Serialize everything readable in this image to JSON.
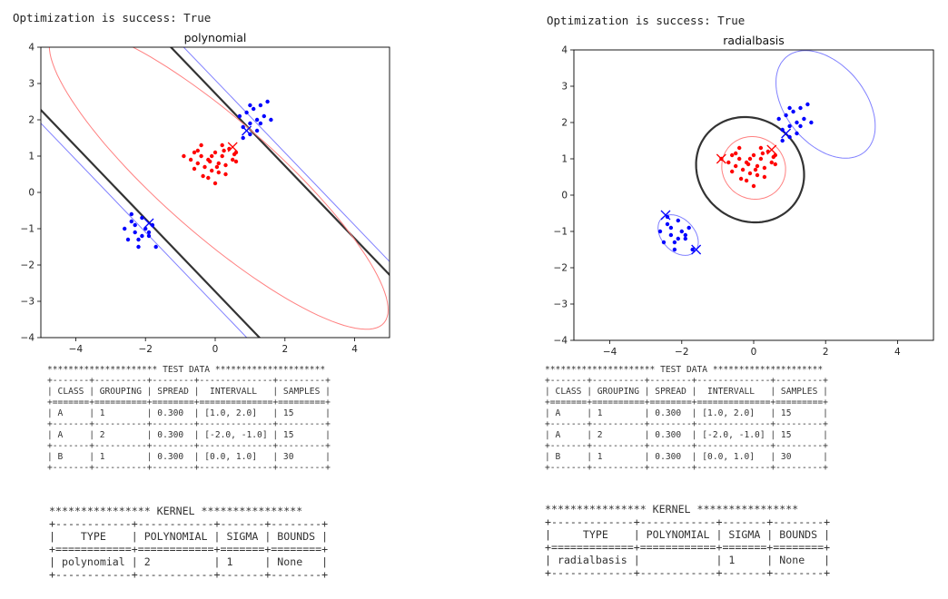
{
  "panels": [
    {
      "success_text": "Optimization is success: True",
      "test_data_text": "********************* TEST DATA *********************\n+-------+----------+--------+--------------+---------+\n| CLASS | GROUPING | SPREAD |  INTERVALL   | SAMPLES |\n+=======+==========+========+==============+=========+\n| A     | 1        | 0.300  | [1.0, 2.0]   | 15      |\n+-------+----------+--------+--------------+---------+\n| A     | 2        | 0.300  | [-2.0, -1.0] | 15      |\n+-------+----------+--------+--------------+---------+\n| B     | 1        | 0.300  | [0.0, 1.0]   | 30      |\n+-------+----------+--------+--------------+---------+",
      "kernel_text": "**************** KERNEL ****************\n+------------+------------+-------+--------+\n|    TYPE    | POLYNOMIAL | SIGMA | BOUNDS |\n+============+============+=======+========+\n| polynomial | 2          | 1     | None   |\n+------------+------------+-------+--------+"
    },
    {
      "success_text": "Optimization is success: True",
      "test_data_text": "********************* TEST DATA *********************\n+-------+----------+--------+--------------+---------+\n| CLASS | GROUPING | SPREAD |  INTERVALL   | SAMPLES |\n+=======+==========+========+==============+=========+\n| A     | 1        | 0.300  | [1.0, 2.0]   | 15      |\n+-------+----------+--------+--------------+---------+\n| A     | 2        | 0.300  | [-2.0, -1.0] | 15      |\n+-------+----------+--------+--------------+---------+\n| B     | 1        | 0.300  | [0.0, 1.0]   | 30      |\n+-------+----------+--------+--------------+---------+",
      "kernel_text": "**************** KERNEL ****************\n+-------------+------------+-------+--------+\n|     TYPE    | POLYNOMIAL | SIGMA | BOUNDS |\n+=============+============+=======+========+\n| radialbasis |            | 1     | None   |\n+-------------+------------+-------+--------+"
    }
  ],
  "colors": {
    "class_a": "#0000ff",
    "class_b": "#ff0000",
    "boundary": "#333333",
    "margin_a": "#8080ff",
    "margin_b": "#ff8080"
  },
  "chart_data": [
    {
      "type": "scatter",
      "title": "polynomial",
      "xlabel": "",
      "ylabel": "",
      "xlim": [
        -5,
        5
      ],
      "ylim": [
        -4,
        4
      ],
      "xticks": [
        -4,
        -2,
        0,
        2,
        4
      ],
      "yticks": [
        -4,
        -3,
        -2,
        -1,
        0,
        1,
        2,
        3,
        4
      ],
      "grid": false,
      "series": [
        {
          "class": "A",
          "color": "#0000ff",
          "points": [
            [
              0.8,
              1.8
            ],
            [
              1.0,
              1.9
            ],
            [
              1.2,
              2.0
            ],
            [
              1.3,
              2.4
            ],
            [
              1.5,
              2.5
            ],
            [
              1.1,
              2.3
            ],
            [
              0.9,
              2.2
            ],
            [
              1.4,
              2.1
            ],
            [
              1.2,
              1.7
            ],
            [
              1.0,
              1.6
            ],
            [
              0.7,
              2.1
            ],
            [
              1.3,
              1.9
            ],
            [
              1.6,
              2.0
            ],
            [
              1.0,
              2.4
            ],
            [
              0.8,
              1.5
            ],
            [
              -2.4,
              -0.6
            ],
            [
              -2.1,
              -0.7
            ],
            [
              -2.3,
              -0.9
            ],
            [
              -2.0,
              -1.0
            ],
            [
              -2.3,
              -1.1
            ],
            [
              -1.9,
              -1.2
            ],
            [
              -2.2,
              -1.3
            ],
            [
              -2.5,
              -1.3
            ],
            [
              -1.7,
              -1.5
            ],
            [
              -2.4,
              -0.8
            ],
            [
              -1.9,
              -1.1
            ],
            [
              -2.1,
              -1.2
            ],
            [
              -2.6,
              -1.0
            ],
            [
              -2.2,
              -1.5
            ],
            [
              -1.8,
              -0.9
            ]
          ]
        },
        {
          "class": "B",
          "color": "#ff0000",
          "points": [
            [
              -0.9,
              1.0
            ],
            [
              -0.6,
              1.1
            ],
            [
              -0.4,
              1.0
            ],
            [
              -0.2,
              0.9
            ],
            [
              0.0,
              1.1
            ],
            [
              0.2,
              1.0
            ],
            [
              0.4,
              1.2
            ],
            [
              0.6,
              1.1
            ],
            [
              -0.5,
              0.8
            ],
            [
              -0.3,
              0.7
            ],
            [
              -0.1,
              0.6
            ],
            [
              0.1,
              0.8
            ],
            [
              0.3,
              0.5
            ],
            [
              -0.2,
              0.4
            ],
            [
              0.0,
              0.25
            ],
            [
              0.5,
              0.9
            ],
            [
              -0.7,
              0.9
            ],
            [
              0.2,
              1.3
            ],
            [
              -0.4,
              1.3
            ],
            [
              0.6,
              0.85
            ],
            [
              -0.1,
              1.0
            ],
            [
              0.3,
              0.75
            ],
            [
              -0.6,
              0.65
            ],
            [
              0.1,
              0.55
            ],
            [
              -0.35,
              0.45
            ],
            [
              0.55,
              1.05
            ],
            [
              -0.15,
              0.85
            ],
            [
              0.25,
              1.15
            ],
            [
              -0.5,
              1.15
            ],
            [
              0.05,
              0.7
            ]
          ]
        }
      ],
      "support_vectors": [
        [
          0.5,
          1.25
        ],
        [
          0.9,
          1.7
        ],
        [
          -1.9,
          -0.85
        ]
      ],
      "contours": {
        "kind": "quadratic",
        "boundary_offsets": [
          -3.5,
          3.5
        ],
        "margin_a_offsets": [
          -4.3,
          4.3
        ],
        "margin_b_ellipse": {
          "cx": 0.1,
          "cy": 0.4,
          "a": 6.2,
          "b": 1.6,
          "angle_deg": -40
        }
      }
    },
    {
      "type": "scatter",
      "title": "radialbasis",
      "xlabel": "",
      "ylabel": "",
      "xlim": [
        -5,
        5
      ],
      "ylim": [
        -4,
        4
      ],
      "xticks": [
        -4,
        -2,
        0,
        2,
        4
      ],
      "yticks": [
        -4,
        -3,
        -2,
        -1,
        0,
        1,
        2,
        3,
        4
      ],
      "grid": false,
      "series": [
        {
          "class": "A",
          "color": "#0000ff",
          "points": [
            [
              0.8,
              1.8
            ],
            [
              1.0,
              1.9
            ],
            [
              1.2,
              2.0
            ],
            [
              1.3,
              2.4
            ],
            [
              1.5,
              2.5
            ],
            [
              1.1,
              2.3
            ],
            [
              0.9,
              2.2
            ],
            [
              1.4,
              2.1
            ],
            [
              1.2,
              1.7
            ],
            [
              1.0,
              1.6
            ],
            [
              0.7,
              2.1
            ],
            [
              1.3,
              1.9
            ],
            [
              1.6,
              2.0
            ],
            [
              1.0,
              2.4
            ],
            [
              0.8,
              1.5
            ],
            [
              -2.4,
              -0.6
            ],
            [
              -2.1,
              -0.7
            ],
            [
              -2.3,
              -0.9
            ],
            [
              -2.0,
              -1.0
            ],
            [
              -2.3,
              -1.1
            ],
            [
              -1.9,
              -1.2
            ],
            [
              -2.2,
              -1.3
            ],
            [
              -2.5,
              -1.3
            ],
            [
              -1.7,
              -1.5
            ],
            [
              -2.4,
              -0.8
            ],
            [
              -1.9,
              -1.1
            ],
            [
              -2.1,
              -1.2
            ],
            [
              -2.6,
              -1.0
            ],
            [
              -2.2,
              -1.5
            ],
            [
              -1.8,
              -0.9
            ]
          ]
        },
        {
          "class": "B",
          "color": "#ff0000",
          "points": [
            [
              -0.9,
              1.0
            ],
            [
              -0.6,
              1.1
            ],
            [
              -0.4,
              1.0
            ],
            [
              -0.2,
              0.9
            ],
            [
              0.0,
              1.1
            ],
            [
              0.2,
              1.0
            ],
            [
              0.4,
              1.2
            ],
            [
              0.6,
              1.1
            ],
            [
              -0.5,
              0.8
            ],
            [
              -0.3,
              0.7
            ],
            [
              -0.1,
              0.6
            ],
            [
              0.1,
              0.8
            ],
            [
              0.3,
              0.5
            ],
            [
              -0.2,
              0.4
            ],
            [
              0.0,
              0.25
            ],
            [
              0.5,
              0.9
            ],
            [
              -0.7,
              0.9
            ],
            [
              0.2,
              1.3
            ],
            [
              -0.4,
              1.3
            ],
            [
              0.6,
              0.85
            ],
            [
              -0.1,
              1.0
            ],
            [
              0.3,
              0.75
            ],
            [
              -0.6,
              0.65
            ],
            [
              0.1,
              0.55
            ],
            [
              -0.35,
              0.45
            ],
            [
              0.55,
              1.05
            ],
            [
              -0.15,
              0.85
            ],
            [
              0.25,
              1.15
            ],
            [
              -0.5,
              1.15
            ],
            [
              0.05,
              0.7
            ]
          ]
        }
      ],
      "support_vectors": [
        [
          -0.9,
          1.0
        ],
        [
          0.5,
          1.25
        ],
        [
          0.9,
          1.7
        ],
        [
          -2.45,
          -0.55
        ],
        [
          -1.6,
          -1.5
        ]
      ],
      "contours": {
        "kind": "ellipses",
        "boundary": [
          {
            "cx": -0.1,
            "cy": 0.7,
            "rx": 1.55,
            "ry": 1.4,
            "angle_deg": -35
          }
        ],
        "margin_b": [
          {
            "cx": 0.0,
            "cy": 0.75,
            "rx": 0.9,
            "ry": 0.85,
            "angle_deg": -30
          }
        ],
        "margin_a": [
          {
            "cx": 2.0,
            "cy": 2.5,
            "rx": 1.7,
            "ry": 1.1,
            "angle_deg": -50
          },
          {
            "cx": -2.1,
            "cy": -1.1,
            "rx": 0.65,
            "ry": 0.45,
            "angle_deg": -45
          }
        ]
      }
    }
  ]
}
